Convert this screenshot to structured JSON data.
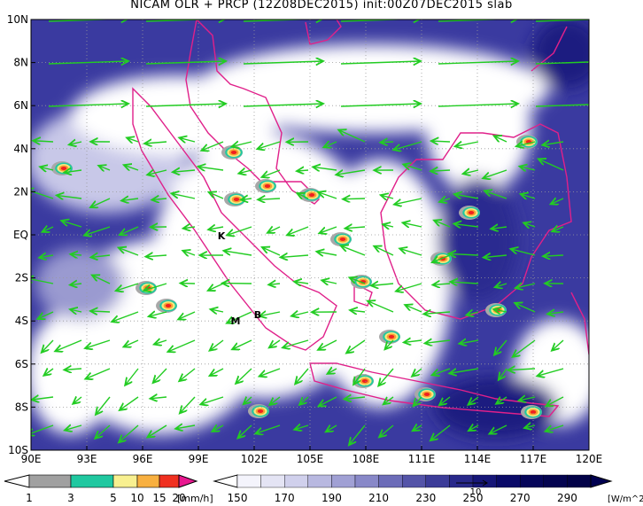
{
  "title": "NICAM OLR + PRCP (12Z08DEC2015) init:00Z07DEC2015 slab",
  "lon_labels": [
    "90E",
    "93E",
    "96E",
    "99E",
    "102E",
    "105E",
    "108E",
    "111E",
    "114E",
    "117E",
    "120E"
  ],
  "lat_labels": [
    "10N",
    "8N",
    "6N",
    "4N",
    "2N",
    "EQ",
    "2S",
    "4S",
    "6S",
    "8S",
    "10S"
  ],
  "markers": [
    "K",
    "M",
    "B"
  ],
  "precip_legend": {
    "labels": [
      "1",
      "3",
      "5",
      "10",
      "15",
      "20"
    ],
    "unit": "[mm/h]"
  },
  "olr_legend": {
    "labels": [
      "150",
      "170",
      "190",
      "210",
      "230",
      "250",
      "270",
      "290"
    ],
    "unit": "[W/m^2]"
  },
  "vector_reference": "10"
}
